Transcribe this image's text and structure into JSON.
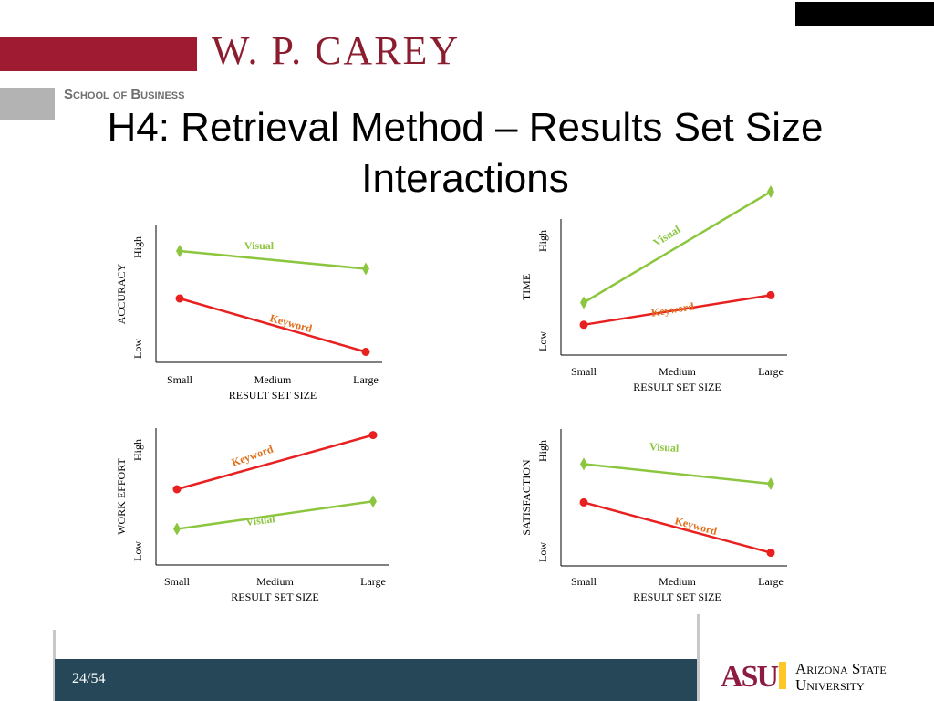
{
  "header": {
    "logo_text": "W. P. CAREY",
    "school_text": "School of Business"
  },
  "slide": {
    "title": "H4: Retrieval Method – Results Set Size Interactions"
  },
  "footer": {
    "page": "24/54",
    "university_logo_text": "Arizona State University"
  },
  "colors": {
    "visual": "#8cc63f",
    "keyword": "#e8201f",
    "keyword_label": "#e0701c",
    "footer": "#254757",
    "brand_red": "#9e1b32"
  },
  "chart_data": [
    {
      "type": "line",
      "x": [
        "Small",
        "Medium",
        "Large"
      ],
      "xlabel": "RESULT SET SIZE",
      "ylabel": "ACCURACY",
      "yticks": [
        "Low",
        "High"
      ],
      "ylim": [
        0,
        1
      ],
      "series": [
        {
          "name": "Visual",
          "marker": "diamond",
          "points": [
            [
              "Small",
              0.9
            ],
            [
              "Large",
              0.75
            ]
          ]
        },
        {
          "name": "Keyword",
          "marker": "circle",
          "points": [
            [
              "Small",
              0.5
            ],
            [
              "Large",
              0.05
            ]
          ]
        }
      ]
    },
    {
      "type": "line",
      "x": [
        "Small",
        "Medium",
        "Large"
      ],
      "xlabel": "RESULT SET SIZE",
      "ylabel": "TIME",
      "yticks": [
        "Low",
        "High"
      ],
      "ylim": [
        0,
        1
      ],
      "series": [
        {
          "name": "Visual",
          "marker": "diamond",
          "points": [
            [
              "Small",
              0.25
            ],
            [
              "Large",
              1.0
            ]
          ]
        },
        {
          "name": "Keyword",
          "marker": "circle",
          "points": [
            [
              "Small",
              0.1
            ],
            [
              "Large",
              0.3
            ]
          ]
        }
      ]
    },
    {
      "type": "line",
      "x": [
        "Small",
        "Medium",
        "Large"
      ],
      "xlabel": "RESULT SET SIZE",
      "ylabel": "WORK EFFORT",
      "yticks": [
        "Low",
        "High"
      ],
      "ylim": [
        0,
        1
      ],
      "series": [
        {
          "name": "Keyword",
          "marker": "circle",
          "points": [
            [
              "Small",
              0.5
            ],
            [
              "Large",
              0.95
            ]
          ]
        },
        {
          "name": "Visual",
          "marker": "diamond",
          "points": [
            [
              "Small",
              0.17
            ],
            [
              "Large",
              0.4
            ]
          ]
        }
      ]
    },
    {
      "type": "line",
      "x": [
        "Small",
        "Medium",
        "Large"
      ],
      "xlabel": "RESULT SET SIZE",
      "ylabel": "SATISFACTION",
      "yticks": [
        "Low",
        "High"
      ],
      "ylim": [
        0,
        1
      ],
      "series": [
        {
          "name": "Visual",
          "marker": "diamond",
          "points": [
            [
              "Small",
              0.88
            ],
            [
              "Large",
              0.7
            ]
          ]
        },
        {
          "name": "Keyword",
          "marker": "circle",
          "points": [
            [
              "Small",
              0.53
            ],
            [
              "Large",
              0.07
            ]
          ]
        }
      ]
    }
  ]
}
